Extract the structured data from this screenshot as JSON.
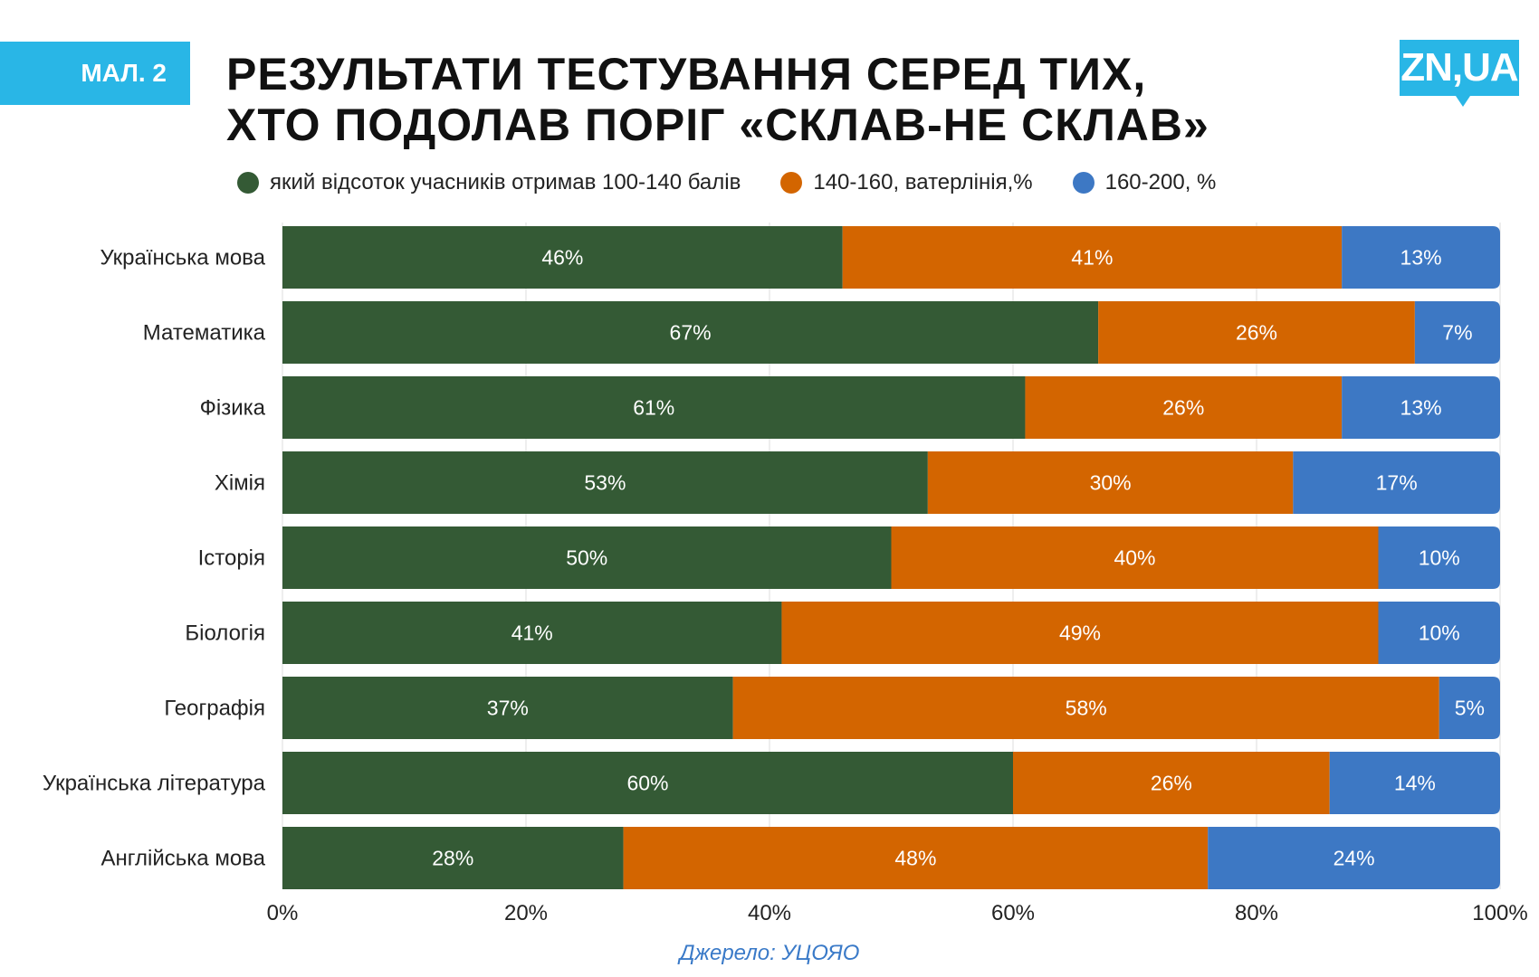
{
  "badge": "МАЛ. 2",
  "title": {
    "line1": "РЕЗУЛЬТАТИ ТЕСТУВАННЯ СЕРЕД ТИХ,",
    "line2": "ХТО ПОДОЛАВ ПОРІГ «СКЛАВ-НЕ СКЛАВ»"
  },
  "logo": "ZN,UA",
  "source": "Джерело: УЦОЯО",
  "colors": {
    "green": "#345a35",
    "orange": "#d36500",
    "blue": "#3d78c4",
    "badge": "#29b6e6",
    "source": "#3a7ac8"
  },
  "chart_data": {
    "type": "bar",
    "orientation": "horizontal",
    "stacked": true,
    "categories": [
      "Українська мова",
      "Математика",
      "Фізика",
      "Хімія",
      "Історія",
      "Біологія",
      "Географія",
      "Українська література",
      "Англійська мова"
    ],
    "series": [
      {
        "name": "який відсоток учасників отримав 100-140 балів",
        "color": "#345a35",
        "values": [
          46,
          67,
          61,
          53,
          50,
          41,
          37,
          60,
          28
        ]
      },
      {
        "name": "140-160, ватерлінія,%",
        "color": "#d36500",
        "values": [
          41,
          26,
          26,
          30,
          40,
          49,
          58,
          26,
          48
        ]
      },
      {
        "name": "160-200, %",
        "color": "#3d78c4",
        "values": [
          13,
          7,
          13,
          17,
          10,
          10,
          5,
          14,
          24
        ]
      }
    ],
    "xlim": [
      0,
      100
    ],
    "xticks": [
      "0%",
      "20%",
      "40%",
      "60%",
      "80%",
      "100%"
    ],
    "grid": true,
    "legend": "top"
  }
}
